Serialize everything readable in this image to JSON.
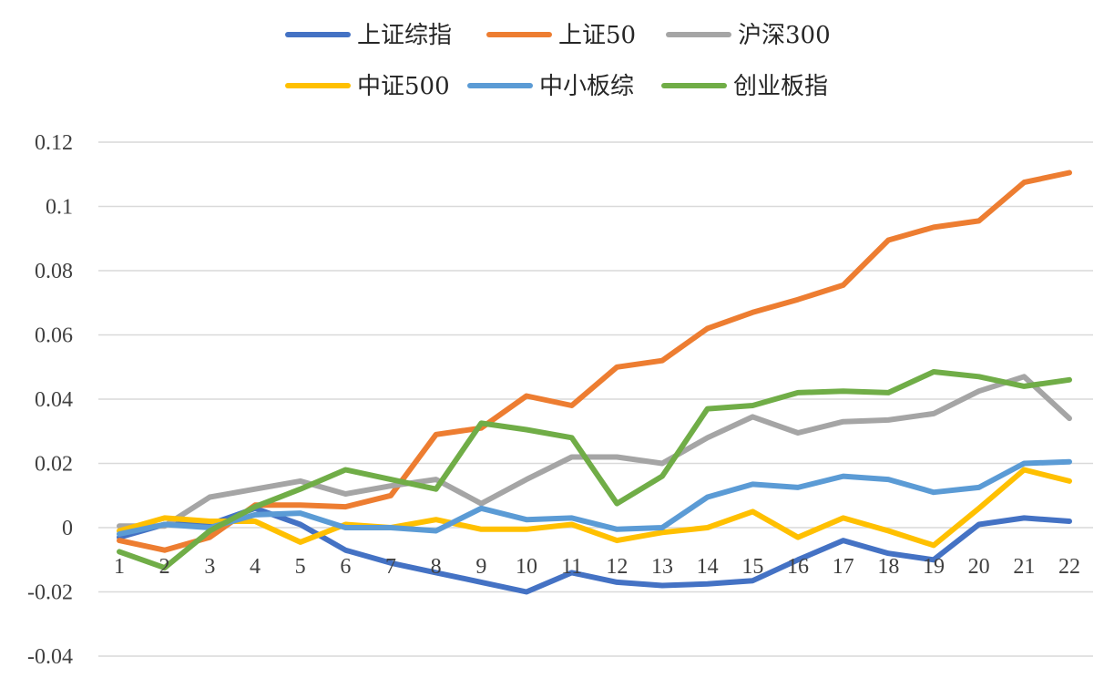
{
  "chart_data": {
    "type": "line",
    "title": "",
    "xlabel": "",
    "ylabel": "",
    "x": [
      1,
      2,
      3,
      4,
      5,
      6,
      7,
      8,
      9,
      10,
      11,
      12,
      13,
      14,
      15,
      16,
      17,
      18,
      19,
      20,
      21,
      22
    ],
    "ylim": [
      -0.04,
      0.12
    ],
    "yticks": [
      "0.12",
      "0.1",
      "0.08",
      "0.06",
      "0.04",
      "0.02",
      "0",
      "-0.02",
      "-0.04"
    ],
    "ytick_values": [
      0.12,
      0.1,
      0.08,
      0.06,
      0.04,
      0.02,
      0,
      -0.02,
      -0.04
    ],
    "grid": true,
    "legend_position": "top-center",
    "series": [
      {
        "name": "上证综指",
        "color": "#4472c4",
        "values": [
          -0.003,
          0.001,
          0.001,
          0.006,
          0.001,
          -0.007,
          -0.011,
          -0.014,
          -0.017,
          -0.02,
          -0.014,
          -0.017,
          -0.018,
          -0.0175,
          -0.0165,
          -0.01,
          -0.004,
          -0.008,
          -0.01,
          0.001,
          0.003,
          0.002
        ]
      },
      {
        "name": "上证50",
        "color": "#ed7d31",
        "values": [
          -0.004,
          -0.007,
          -0.003,
          0.007,
          0.007,
          0.0065,
          0.01,
          0.029,
          0.031,
          0.041,
          0.038,
          0.05,
          0.052,
          0.062,
          0.067,
          0.071,
          0.0755,
          0.0895,
          0.0935,
          0.0955,
          0.1075,
          0.1105
        ]
      },
      {
        "name": "沪深300",
        "color": "#a5a5a5",
        "values": [
          0.0005,
          0.0005,
          0.0095,
          0.012,
          0.0145,
          0.0105,
          0.013,
          0.015,
          0.0075,
          0.015,
          0.022,
          0.022,
          0.02,
          0.028,
          0.0345,
          0.0295,
          0.033,
          0.0335,
          0.0355,
          0.0425,
          0.047,
          0.034
        ]
      },
      {
        "name": "中证500",
        "color": "#ffc000",
        "values": [
          -0.001,
          0.003,
          0.002,
          0.002,
          -0.0045,
          0.001,
          0.0,
          0.0025,
          -0.0005,
          -0.0005,
          0.001,
          -0.004,
          -0.0015,
          0.0,
          0.005,
          -0.003,
          0.003,
          -0.001,
          -0.0055,
          0.006,
          0.018,
          0.0145
        ]
      },
      {
        "name": "中小板综",
        "color": "#5b9bd5",
        "values": [
          -0.002,
          0.001,
          0.0,
          0.004,
          0.0045,
          0.0,
          0.0,
          -0.001,
          0.006,
          0.0025,
          0.003,
          -0.0005,
          0.0,
          0.0095,
          0.0135,
          0.0125,
          0.016,
          0.015,
          0.011,
          0.0125,
          0.02,
          0.0205
        ]
      },
      {
        "name": "创业板指",
        "color": "#70ad47",
        "values": [
          -0.0075,
          -0.0125,
          -0.001,
          0.0065,
          0.012,
          0.018,
          0.015,
          0.012,
          0.0325,
          0.0305,
          0.028,
          0.0075,
          0.016,
          0.037,
          0.038,
          0.042,
          0.0425,
          0.042,
          0.0485,
          0.047,
          0.044,
          0.046
        ]
      }
    ]
  }
}
